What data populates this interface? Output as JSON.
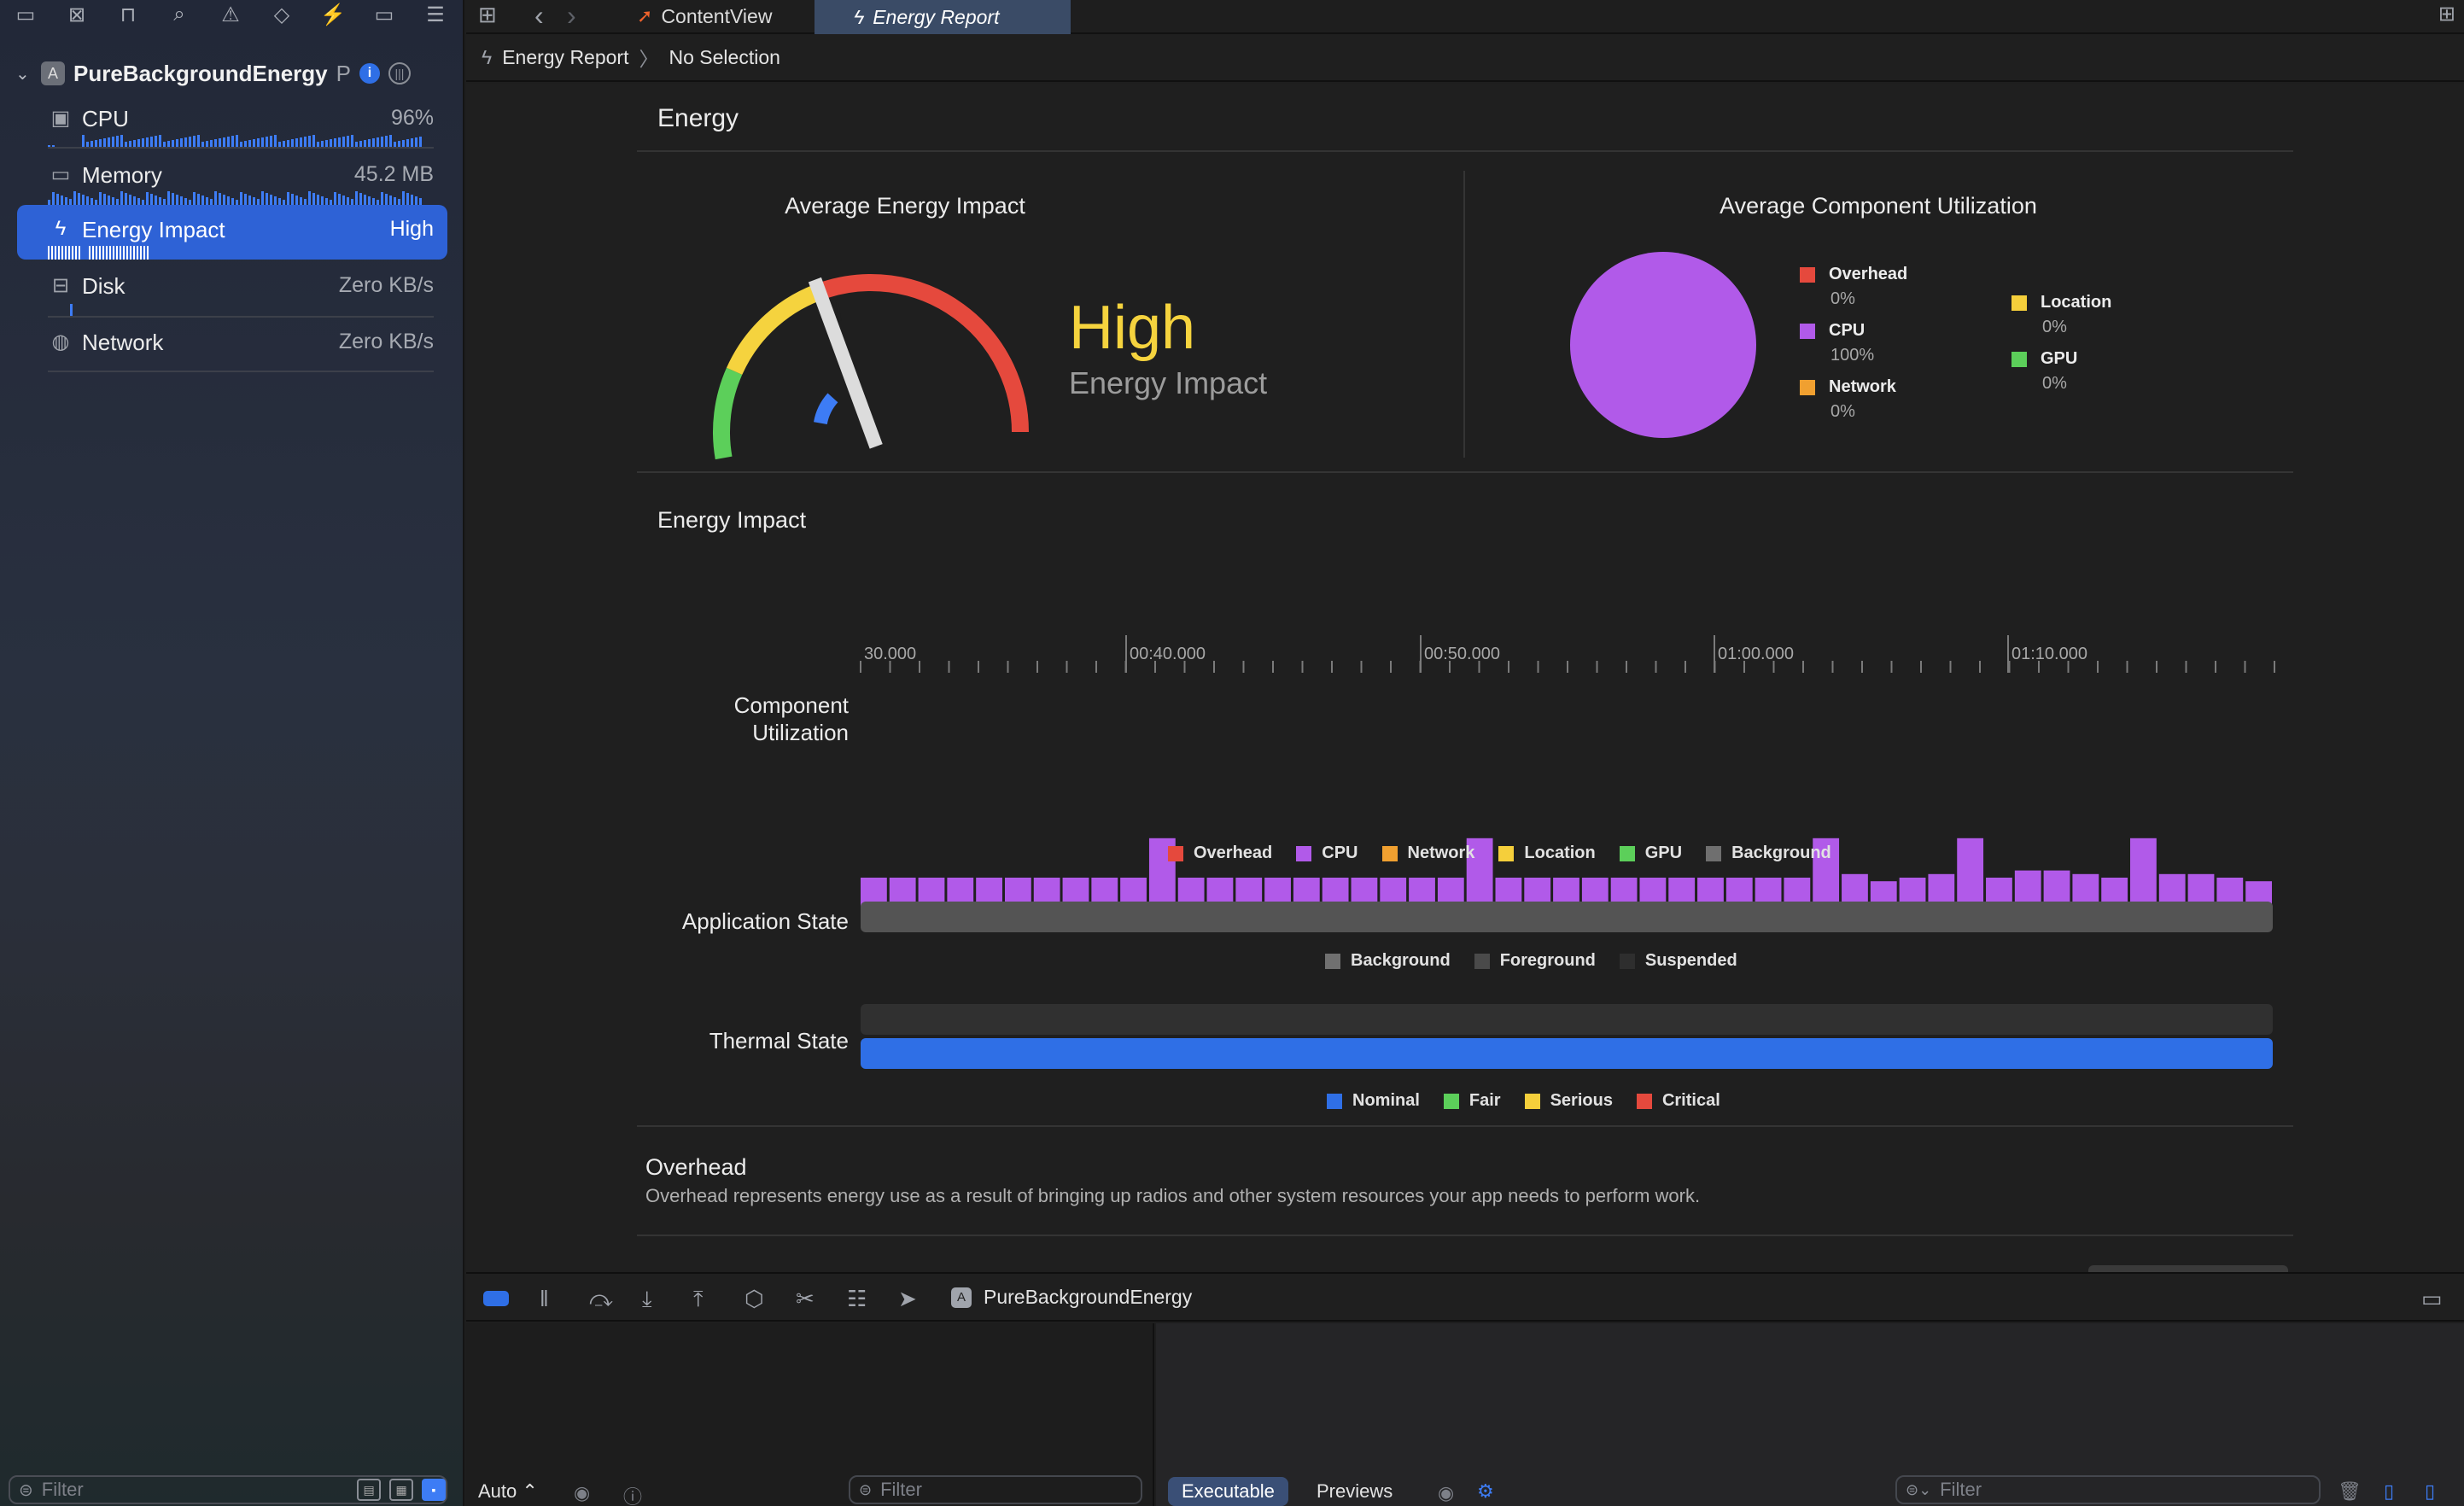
{
  "sidebar": {
    "project_name": "PureBackgroundEnergy",
    "project_suffix": "P",
    "gauges": [
      {
        "label": "CPU",
        "value": "96%",
        "icon": "cpu-icon"
      },
      {
        "label": "Memory",
        "value": "45.2 MB",
        "icon": "memory-icon"
      },
      {
        "label": "Energy Impact",
        "value": "High",
        "icon": "bolt-icon"
      },
      {
        "label": "Disk",
        "value": "Zero KB/s",
        "icon": "disk-icon"
      },
      {
        "label": "Network",
        "value": "Zero KB/s",
        "icon": "globe-icon"
      }
    ],
    "filter_placeholder": "Filter"
  },
  "tabs": [
    {
      "label": "ContentView",
      "icon": "swift-icon"
    },
    {
      "label": "Energy Report",
      "icon": "bolt-icon"
    }
  ],
  "breadcrumb": {
    "item1": "Energy Report",
    "item2": "No Selection"
  },
  "report": {
    "section_title": "Energy",
    "avg_energy_title": "Average Energy Impact",
    "avg_component_title": "Average Component Utilization",
    "level": "High",
    "level_sub": "Energy Impact",
    "gauge_level": 0.42,
    "component_legend": [
      {
        "name": "Overhead",
        "pct": "0%",
        "color": "#e5493d"
      },
      {
        "name": "CPU",
        "pct": "100%",
        "color": "#b15ae9"
      },
      {
        "name": "Network",
        "pct": "0%",
        "color": "#f0a030"
      },
      {
        "name": "Location",
        "pct": "0%",
        "color": "#f5cf3b"
      },
      {
        "name": "GPU",
        "pct": "0%",
        "color": "#5ccf5a"
      }
    ],
    "impact_title": "Energy Impact",
    "time_ticks": [
      "30.000",
      "00:40.000",
      "00:50.000",
      "01:00.000",
      "01:10.000"
    ],
    "component_label": "Component\nUtilization",
    "app_state_label": "Application State",
    "thermal_label": "Thermal State",
    "bar_legend": [
      {
        "name": "Overhead",
        "color": "#e5493d"
      },
      {
        "name": "CPU",
        "color": "#b15ae9"
      },
      {
        "name": "Network",
        "color": "#f0a030"
      },
      {
        "name": "Location",
        "color": "#f5cf3b"
      },
      {
        "name": "GPU",
        "color": "#5ccf5a"
      },
      {
        "name": "Background",
        "color": "#6f6f6f"
      }
    ],
    "app_state_legend": [
      {
        "name": "Background",
        "color": "#707070"
      },
      {
        "name": "Foreground",
        "color": "#4a4a4a"
      },
      {
        "name": "Suspended",
        "color": "#2e2e2e"
      }
    ],
    "thermal_legend": [
      {
        "name": "Nominal",
        "color": "#2f6fe6"
      },
      {
        "name": "Fair",
        "color": "#5ccf5a"
      },
      {
        "name": "Serious",
        "color": "#f5cf3b"
      },
      {
        "name": "Critical",
        "color": "#e5493d"
      }
    ],
    "overhead_title": "Overhead",
    "overhead_desc": "Overhead represents energy use as a result of bringing up radios and other system resources your app needs to perform work."
  },
  "chart_data": {
    "type": "bar",
    "title": "Energy Impact",
    "series": [
      {
        "name": "CPU",
        "values": [
          1,
          1,
          1,
          1,
          1,
          1,
          1,
          1,
          1,
          1,
          2.1,
          1,
          1,
          1,
          1,
          1,
          1,
          1,
          1,
          1,
          1,
          2.1,
          1,
          1,
          1,
          1,
          1,
          1,
          1,
          1,
          1,
          1,
          1,
          2.1,
          1.1,
          0.9,
          1,
          1.1,
          2.1,
          1,
          1.2,
          1.2,
          1.1,
          1,
          2.1,
          1.1,
          1.1,
          1,
          0.9
        ]
      }
    ],
    "pie": [
      {
        "name": "CPU",
        "value": 100
      }
    ]
  },
  "debugbar": {
    "target": "PureBackgroundEnergy"
  },
  "console": {
    "auto_label": "Auto ⌃",
    "filter_placeholder": "Filter",
    "tab_executable": "Executable",
    "tab_previews": "Previews"
  }
}
